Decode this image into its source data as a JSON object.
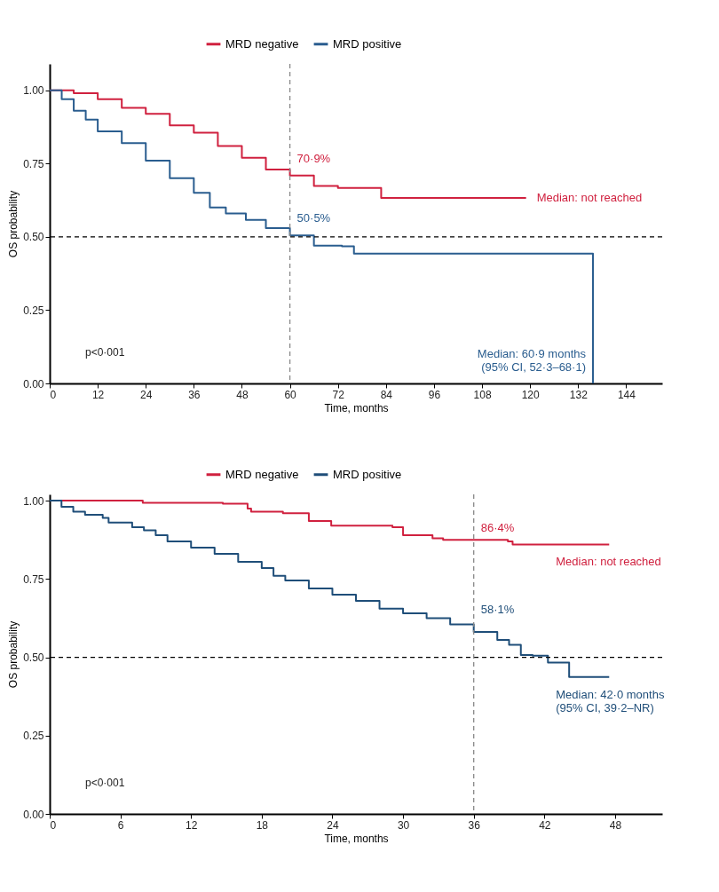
{
  "chart_data": [
    {
      "type": "step",
      "xlabel": "Time, months",
      "ylabel": "OS probability",
      "legend": "top",
      "xlim": [
        0,
        153
      ],
      "ylim": [
        0,
        1.09
      ],
      "xticks": [
        0,
        12,
        24,
        36,
        48,
        60,
        72,
        84,
        96,
        108,
        120,
        132,
        144
      ],
      "yticks": [
        {
          "value": 0,
          "label": "0.00"
        },
        {
          "value": 0.25,
          "label": "0.25"
        },
        {
          "value": 0.5,
          "label": "0.50"
        },
        {
          "value": 0.75,
          "label": "0.75"
        },
        {
          "value": 1,
          "label": "1.00"
        }
      ],
      "series": [
        {
          "name": "MRD negative",
          "color": "#d0213f",
          "x": [
            0,
            6,
            12,
            18,
            24,
            30,
            36,
            42,
            48,
            54,
            60,
            66,
            72,
            82.8,
            119
          ],
          "values": [
            1,
            0.99,
            0.97,
            0.94,
            0.92,
            0.88,
            0.855,
            0.81,
            0.77,
            0.73,
            0.709,
            0.674,
            0.667,
            0.633,
            0.633
          ]
        },
        {
          "name": "MRD positive",
          "color": "#2a5d8f",
          "x": [
            0,
            3,
            6,
            9,
            12,
            18,
            24,
            30,
            36,
            40,
            44,
            49,
            54,
            60,
            66,
            73,
            76,
            135.7,
            135.71
          ],
          "values": [
            1,
            0.97,
            0.93,
            0.9,
            0.86,
            0.82,
            0.76,
            0.7,
            0.65,
            0.6,
            0.58,
            0.558,
            0.53,
            0.505,
            0.47,
            0.468,
            0.443,
            0.443,
            0
          ]
        }
      ],
      "ref_lines": [
        {
          "axis": "y",
          "value": 0.5,
          "color": "#000000",
          "line_style": "dashed"
        },
        {
          "axis": "x",
          "value": 60,
          "color": "#888888",
          "line_style": "dashed"
        }
      ],
      "annotations": [
        {
          "text": "70·9%",
          "x": 60,
          "y": 0.709
        },
        {
          "text": "50·5%",
          "x": 60,
          "y": 0.505
        },
        {
          "text": "Median: not reached",
          "x": 119,
          "y": 0.633
        },
        {
          "text": "Median: 60·9 months\n(95% CI, 52·3–68·1)",
          "x": 135.7,
          "y": 0
        },
        "p<0·001"
      ]
    },
    {
      "type": "step",
      "xlabel": "Time, months",
      "ylabel": "OS probability",
      "legend": "top",
      "xlim": [
        0,
        52
      ],
      "ylim": [
        0,
        1.02
      ],
      "xticks": [
        0,
        6,
        12,
        18,
        24,
        30,
        36,
        42,
        48
      ],
      "yticks": [
        {
          "value": 0,
          "label": "0.00"
        },
        {
          "value": 0.25,
          "label": "0.25"
        },
        {
          "value": 0.5,
          "label": "0.50"
        },
        {
          "value": 0.75,
          "label": "0.75"
        },
        {
          "value": 1,
          "label": "1.00"
        }
      ],
      "series": [
        {
          "name": "MRD negative",
          "color": "#d0213f",
          "x": [
            0,
            7.9,
            14.7,
            16.8,
            17.1,
            19.8,
            22,
            23.9,
            29.1,
            30,
            32.5,
            33.4,
            38.9,
            39.3,
            47.5
          ],
          "values": [
            1,
            0.993,
            0.99,
            0.975,
            0.965,
            0.96,
            0.935,
            0.92,
            0.915,
            0.89,
            0.88,
            0.875,
            0.87,
            0.86,
            0.86
          ]
        },
        {
          "name": "MRD positive",
          "color": "#1f4e79",
          "x": [
            0,
            1,
            2,
            3,
            4.5,
            5,
            7,
            8,
            9,
            10,
            12,
            14,
            16,
            18,
            19,
            20,
            22,
            24,
            26,
            28,
            30,
            32,
            34,
            36,
            38,
            39,
            40,
            41,
            42.3,
            44.1,
            47.5
          ],
          "values": [
            1,
            0.98,
            0.965,
            0.955,
            0.945,
            0.93,
            0.915,
            0.905,
            0.89,
            0.87,
            0.85,
            0.83,
            0.805,
            0.785,
            0.76,
            0.745,
            0.72,
            0.7,
            0.68,
            0.655,
            0.64,
            0.625,
            0.605,
            0.581,
            0.555,
            0.54,
            0.507,
            0.505,
            0.483,
            0.437,
            0.437
          ]
        }
      ],
      "ref_lines": [
        {
          "axis": "y",
          "value": 0.5,
          "color": "#000000",
          "line_style": "dashed"
        },
        {
          "axis": "x",
          "value": 36,
          "color": "#888888",
          "line_style": "dashed"
        }
      ],
      "annotations": [
        {
          "text": "86·4%",
          "x": 36,
          "y": 0.864
        },
        {
          "text": "58·1%",
          "x": 36,
          "y": 0.581
        },
        {
          "text": "Median: not reached",
          "x": 47.5,
          "y": 0.86
        },
        {
          "text": "Median: 42·0 months\n(95% CI, 39·2–NR)",
          "x": 47.5,
          "y": 0.437
        },
        "p<0·001"
      ]
    }
  ]
}
